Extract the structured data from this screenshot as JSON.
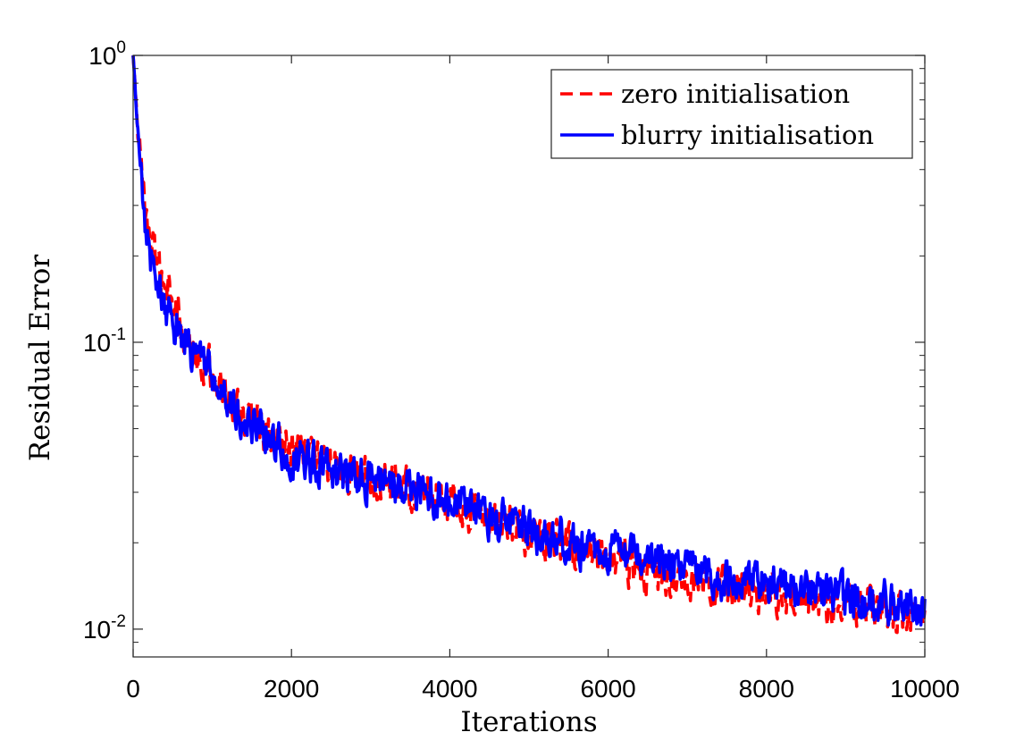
{
  "chart_data": {
    "type": "line",
    "xlabel": "Iterations",
    "ylabel": "Residual Error",
    "xlim": [
      0,
      10000
    ],
    "ylim": [
      0.008,
      1
    ],
    "y_scale": "log",
    "grid": false,
    "legend_position": "top-right",
    "x_ticks": [
      {
        "value": 0,
        "label": "0"
      },
      {
        "value": 2000,
        "label": "2000"
      },
      {
        "value": 4000,
        "label": "4000"
      },
      {
        "value": 6000,
        "label": "6000"
      },
      {
        "value": 8000,
        "label": "8000"
      },
      {
        "value": 10000,
        "label": "10000"
      }
    ],
    "y_ticks": [
      {
        "value": 1,
        "base": "10",
        "exp": "0"
      },
      {
        "value": 0.1,
        "base": "10",
        "exp": "-1"
      },
      {
        "value": 0.01,
        "base": "10",
        "exp": "-2"
      }
    ],
    "series": [
      {
        "name": "zero initialisation",
        "color": "#ff0000",
        "line_style": "dashed",
        "noise_amplitude": 0.11,
        "x": [
          0,
          25,
          50,
          100,
          150,
          200,
          250,
          300,
          350,
          400,
          500,
          600,
          700,
          800,
          900,
          1000,
          1200,
          1400,
          1600,
          1800,
          2000,
          2300,
          2600,
          3000,
          3400,
          3800,
          4200,
          4600,
          5000,
          5400,
          5800,
          6200,
          6600,
          7000,
          7400,
          7800,
          8200,
          8600,
          9000,
          9400,
          9800,
          10000
        ],
        "y": [
          1.0,
          0.78,
          0.6,
          0.4,
          0.3,
          0.24,
          0.205,
          0.185,
          0.17,
          0.155,
          0.135,
          0.115,
          0.1,
          0.092,
          0.085,
          0.078,
          0.065,
          0.055,
          0.05,
          0.045,
          0.042,
          0.039,
          0.036,
          0.034,
          0.032,
          0.029,
          0.026,
          0.024,
          0.021,
          0.02,
          0.018,
          0.017,
          0.016,
          0.015,
          0.0145,
          0.0138,
          0.0132,
          0.0127,
          0.0122,
          0.0118,
          0.0114,
          0.0112
        ]
      },
      {
        "name": "blurry initialisation",
        "color": "#0000ff",
        "line_style": "solid",
        "noise_amplitude": 0.11,
        "x": [
          0,
          25,
          50,
          100,
          150,
          200,
          250,
          300,
          350,
          400,
          500,
          600,
          700,
          800,
          900,
          1000,
          1200,
          1400,
          1600,
          1800,
          2000,
          2300,
          2600,
          3000,
          3400,
          3800,
          4200,
          4600,
          5000,
          5400,
          5800,
          6200,
          6600,
          7000,
          7400,
          7800,
          8200,
          8600,
          9000,
          9400,
          9800,
          10000
        ],
        "y": [
          1.0,
          0.76,
          0.58,
          0.38,
          0.28,
          0.22,
          0.185,
          0.16,
          0.145,
          0.135,
          0.12,
          0.108,
          0.097,
          0.089,
          0.083,
          0.076,
          0.062,
          0.054,
          0.049,
          0.045,
          0.041,
          0.038,
          0.035,
          0.033,
          0.031,
          0.0285,
          0.026,
          0.024,
          0.022,
          0.0205,
          0.019,
          0.0178,
          0.0168,
          0.016,
          0.0153,
          0.0147,
          0.0141,
          0.0135,
          0.013,
          0.0125,
          0.0121,
          0.0118
        ]
      }
    ]
  }
}
